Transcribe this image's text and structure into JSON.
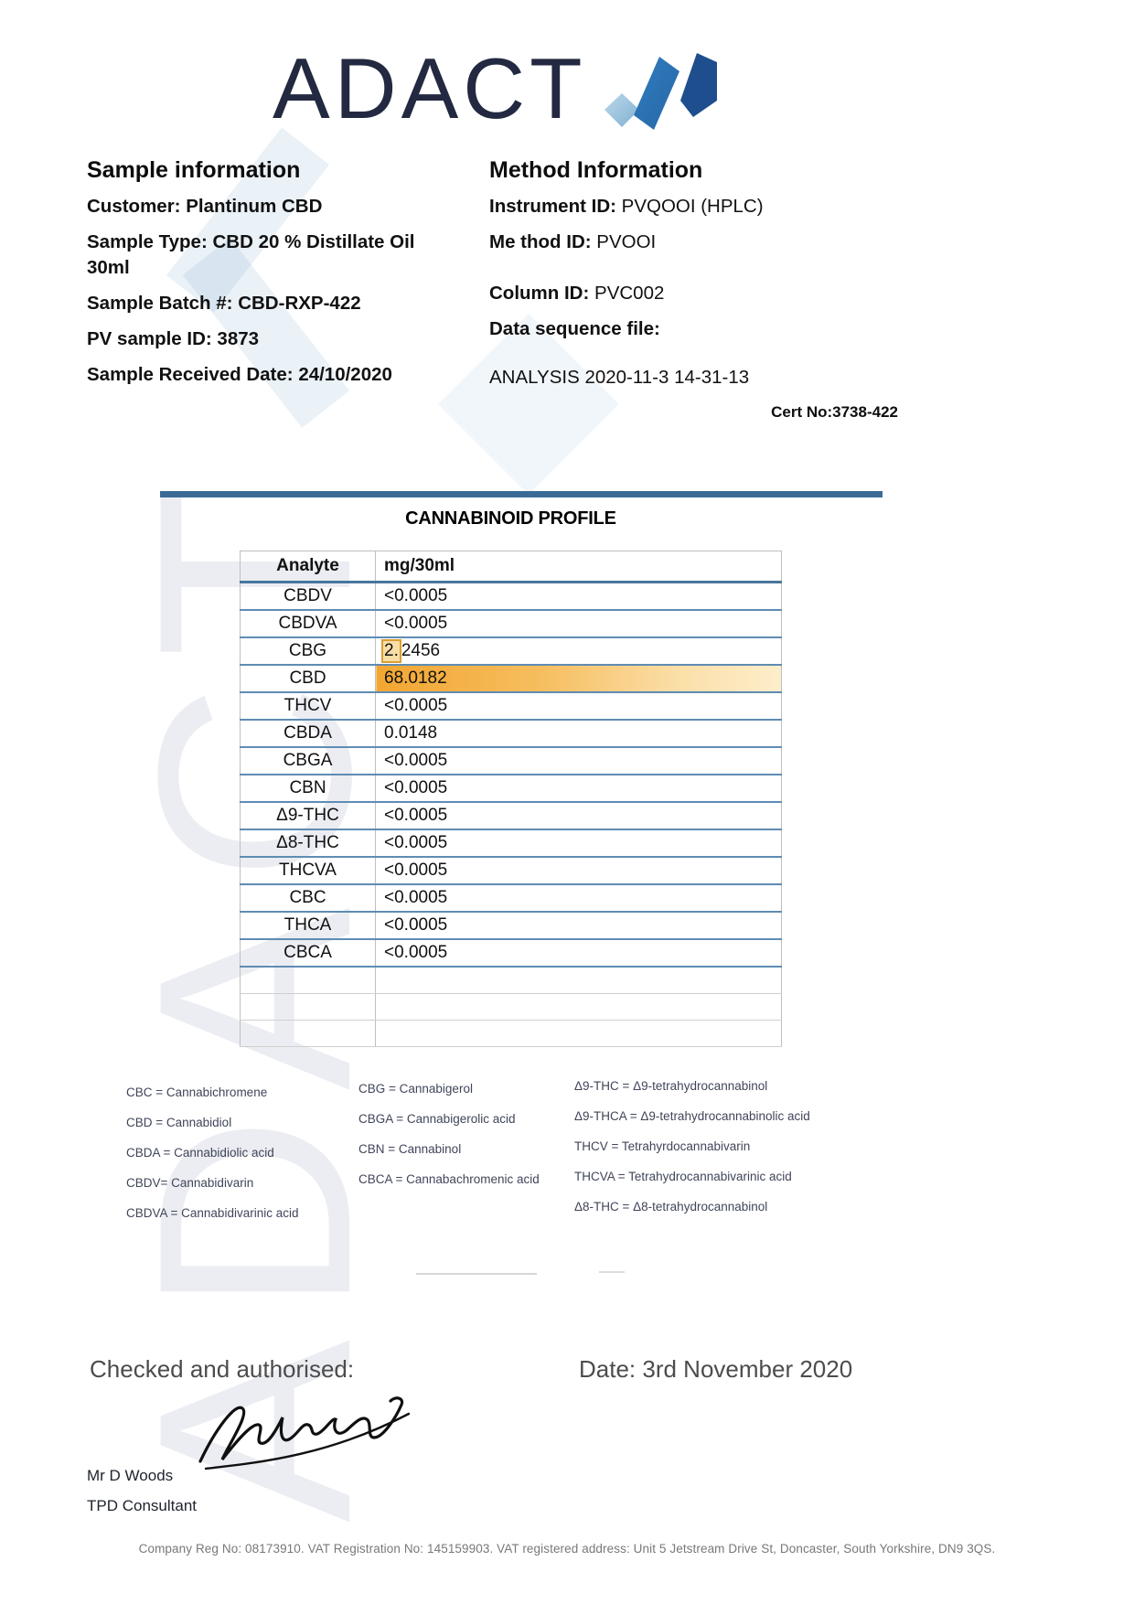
{
  "logo_text": "ADACT",
  "sample_information": {
    "title": "Sample information",
    "fields": [
      {
        "label": "Customer:",
        "value": "Plantinum CBD"
      },
      {
        "label": "Sample Type:",
        "value": "CBD 20 % Distillate Oil 30ml"
      },
      {
        "label": "Sample Batch #:",
        "value": "CBD-RXP-422"
      },
      {
        "label": "PV sample ID:",
        "value": "3873"
      },
      {
        "label": "Sample Received Date:",
        "value": "24/10/2020"
      }
    ]
  },
  "method_information": {
    "title": "Method Information",
    "fields": [
      {
        "label": "Instrument ID:",
        "value": "PVQOOI (HPLC)"
      },
      {
        "label": "Me thod ID:",
        "value": "PVOOI"
      },
      {
        "label": "Column ID:",
        "value": "PVC002"
      },
      {
        "label": "Data sequence file:",
        "value": ""
      }
    ],
    "data_sequence_file": "ANALYSIS 2020-11-3  14-31-13"
  },
  "cert_no": "Cert No:3738-422",
  "cannabinoid_profile": {
    "title": "CANNABINOID PROFILE",
    "columns": [
      "Analyte",
      "mg/30ml"
    ],
    "rows": [
      {
        "analyte": "CBDV",
        "value": "<0.0005",
        "rowstyle": "none"
      },
      {
        "analyte": "CBDVA",
        "value": "<0.0005",
        "rowstyle": "none"
      },
      {
        "analyte": "CBG",
        "value": "2.2456",
        "rowstyle": "partial"
      },
      {
        "analyte": "CBD",
        "value": "68.0182",
        "rowstyle": "full"
      },
      {
        "analyte": "THCV",
        "value": "<0.0005",
        "rowstyle": "none"
      },
      {
        "analyte": "CBDA",
        "value": "0.0148",
        "rowstyle": "none"
      },
      {
        "analyte": "CBGA",
        "value": "<0.0005",
        "rowstyle": "none"
      },
      {
        "analyte": "CBN",
        "value": "<0.0005",
        "rowstyle": "none"
      },
      {
        "analyte": "Δ9-THC",
        "value": "<0.0005",
        "rowstyle": "none"
      },
      {
        "analyte": "Δ8-THC",
        "value": "<0.0005",
        "rowstyle": "none"
      },
      {
        "analyte": "THCVA",
        "value": "<0.0005",
        "rowstyle": "none"
      },
      {
        "analyte": "CBC",
        "value": "<0.0005",
        "rowstyle": "none"
      },
      {
        "analyte": "THCA",
        "value": "<0.0005",
        "rowstyle": "none"
      },
      {
        "analyte": "CBCA",
        "value": "<0.0005",
        "rowstyle": "none"
      },
      {
        "analyte": "",
        "value": "",
        "rowstyle": "empty"
      },
      {
        "analyte": "",
        "value": "",
        "rowstyle": "empty"
      },
      {
        "analyte": "",
        "value": "",
        "rowstyle": "empty"
      }
    ]
  },
  "legend": {
    "column1": [
      "CBC = Cannabichromene",
      "CBD = Cannabidiol",
      "CBDA = Cannabidiolic acid",
      "CBDV= Cannabidivarin",
      "CBDVA = Cannabidivarinic acid"
    ],
    "column2": [
      "CBG = Cannabigerol",
      "CBGA = Cannabigerolic acid",
      "CBN = Cannabinol",
      "CBCA = Cannabachromenic acid"
    ],
    "column3": [
      "Δ9-THC = Δ9-tetrahydrocannabinol",
      "Δ9-THCA  = Δ9-tetrahydrocannabinolic acid",
      "THCV = Tetrahyrdocannabivarin",
      "THCVA = Tetrahydrocannabivarinic acid",
      "Δ8-THC = Δ8-tetrahydrocannabinol"
    ]
  },
  "authorisation": {
    "checked_label": "Checked and authorised:",
    "date_text": "Date: 3rd November 2020",
    "signatory_name": "Mr D Woods",
    "signatory_role": "TPD Consultant"
  },
  "footer_text": "Company Reg No: 08173910. VAT Registration No: 145159903. VAT registered address: Unit 5 Jetstream Drive St, Doncaster, South Yorkshire, DN9 3QS.",
  "colors": {
    "logo_navy": "#232940",
    "divider_blue": "#3a6b96",
    "row_line_blue": "#5f8cb3",
    "highlight_orange": "#f2a631",
    "highlight_orange_light": "#fdeecb",
    "mark_light_blue": "#8fc0dc",
    "mark_mid_blue": "#2e7cbe",
    "mark_dark_blue": "#1f4e8e"
  }
}
